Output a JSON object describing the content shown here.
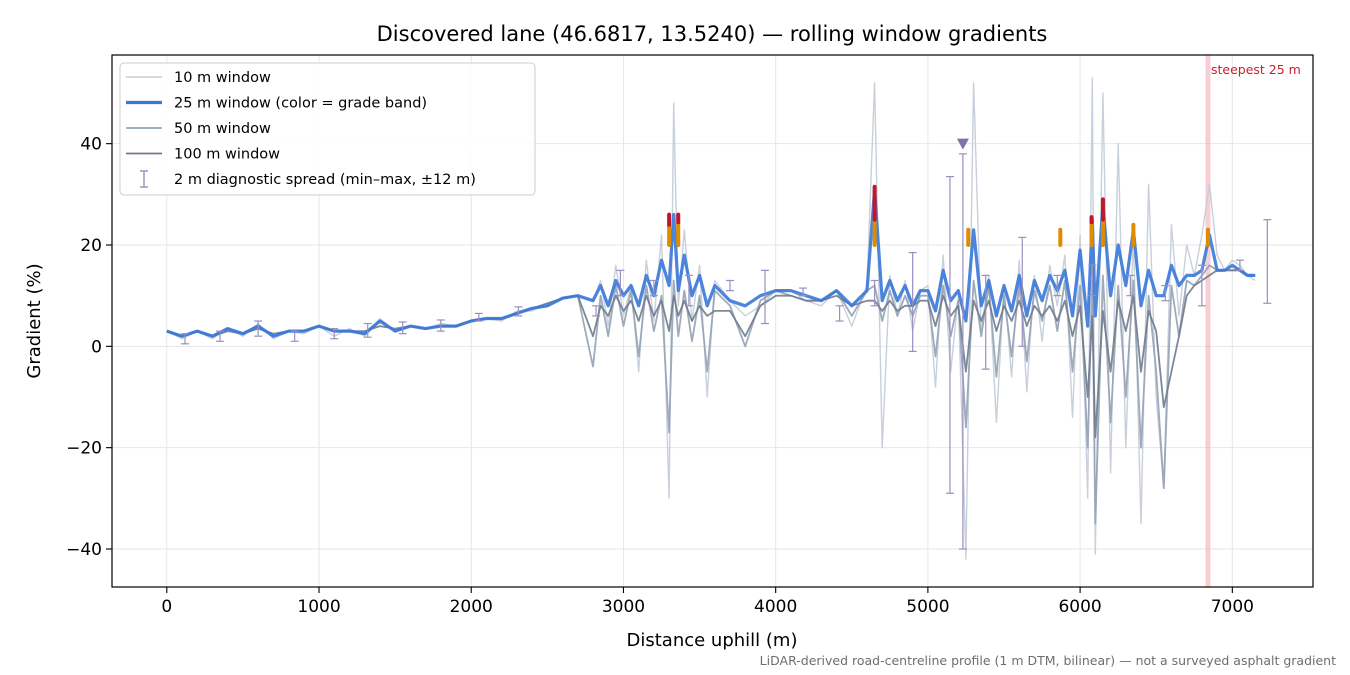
{
  "chart_data": {
    "type": "line",
    "title": "Discovered lane (46.6817, 13.5240) — rolling window gradients",
    "xlabel": "Distance uphill (m)",
    "ylabel": "Gradient (%)",
    "xlim": [
      -360,
      7530
    ],
    "ylim": [
      -47.5,
      57.5
    ],
    "xticks": [
      0,
      1000,
      2000,
      3000,
      4000,
      5000,
      6000,
      7000
    ],
    "yticks": [
      -40,
      -20,
      0,
      20,
      40
    ],
    "xtick_labels": [
      "0",
      "1000",
      "2000",
      "3000",
      "4000",
      "5000",
      "6000",
      "7000"
    ],
    "ytick_labels": [
      "−40",
      "−20",
      "0",
      "20",
      "40"
    ],
    "grid": true,
    "legend_position": "upper-left",
    "footnote": "LiDAR-derived road-centreline profile (1 m DTM, bilinear) — not a surveyed asphalt gradient",
    "annotations": [
      {
        "text": "steepest 25 m",
        "x": 6840,
        "type": "vertical-band",
        "color": "#f4a6ad"
      },
      {
        "type": "marker",
        "shape": "triangle-down",
        "x": 5230,
        "y": 40,
        "color": "#7f73ad"
      }
    ],
    "grade_band_colors": {
      "normal": "#3a78d8",
      "steep": "#e08c00",
      "very_steep": "#c0172b"
    },
    "series": [
      {
        "name": "10 m window",
        "color": "#c5ced9",
        "style": "thin",
        "x": [
          0,
          100,
          200,
          300,
          400,
          500,
          600,
          700,
          800,
          900,
          1000,
          1100,
          1200,
          1300,
          1400,
          1500,
          1600,
          1700,
          1800,
          1900,
          2000,
          2100,
          2200,
          2300,
          2400,
          2500,
          2600,
          2700,
          2800,
          2850,
          2900,
          2950,
          3000,
          3050,
          3100,
          3150,
          3200,
          3250,
          3300,
          3330,
          3360,
          3400,
          3450,
          3500,
          3550,
          3600,
          3700,
          3800,
          3900,
          4000,
          4100,
          4200,
          4300,
          4400,
          4500,
          4600,
          4650,
          4700,
          4750,
          4800,
          4850,
          4900,
          4950,
          5000,
          5050,
          5100,
          5150,
          5200,
          5250,
          5300,
          5350,
          5400,
          5450,
          5500,
          5550,
          5600,
          5650,
          5700,
          5750,
          5800,
          5850,
          5900,
          5950,
          6000,
          6050,
          6080,
          6100,
          6150,
          6200,
          6250,
          6300,
          6350,
          6400,
          6450,
          6500,
          6550,
          6600,
          6650,
          6700,
          6750,
          6800,
          6850,
          6900,
          6950,
          7000,
          7050,
          7100,
          7150
        ],
        "y": [
          3,
          1.5,
          3,
          1.5,
          3.5,
          2,
          4.5,
          1.5,
          3,
          2.5,
          4,
          2,
          3.5,
          2,
          5.5,
          3,
          4,
          3.5,
          4.5,
          4,
          5,
          5.5,
          5,
          7,
          7,
          8.5,
          9.5,
          10,
          9,
          13,
          4,
          16,
          6,
          12,
          -5,
          17,
          5,
          22,
          -30,
          48,
          8,
          23,
          5,
          16,
          -10,
          13,
          9,
          6,
          8,
          11,
          11,
          9,
          8,
          11,
          4,
          12,
          52,
          -20,
          14,
          6,
          13,
          3,
          11,
          12,
          -8,
          18,
          -5,
          10,
          -42,
          52,
          3,
          14,
          -15,
          12,
          -6,
          17,
          -9,
          14,
          1,
          16,
          8,
          18,
          -14,
          22,
          -30,
          53,
          -41,
          50,
          -25,
          40,
          -20,
          22,
          -35,
          32,
          -10,
          -28,
          24,
          6,
          20,
          14,
          22,
          32,
          18,
          15,
          17,
          16,
          14,
          13
        ],
        "label_ref": "legend.items.0.label"
      },
      {
        "name": "25 m window (color = grade band)",
        "color": "#3a78d8",
        "style": "thick",
        "x": [
          0,
          100,
          200,
          300,
          400,
          500,
          600,
          700,
          800,
          900,
          1000,
          1100,
          1200,
          1300,
          1400,
          1500,
          1600,
          1700,
          1800,
          1900,
          2000,
          2100,
          2200,
          2300,
          2400,
          2500,
          2600,
          2700,
          2800,
          2850,
          2900,
          2950,
          3000,
          3050,
          3100,
          3150,
          3200,
          3250,
          3300,
          3330,
          3360,
          3400,
          3450,
          3500,
          3550,
          3600,
          3700,
          3800,
          3900,
          4000,
          4100,
          4200,
          4300,
          4400,
          4500,
          4600,
          4650,
          4700,
          4750,
          4800,
          4850,
          4900,
          4950,
          5000,
          5050,
          5100,
          5150,
          5200,
          5250,
          5300,
          5350,
          5400,
          5450,
          5500,
          5550,
          5600,
          5650,
          5700,
          5750,
          5800,
          5850,
          5900,
          5950,
          6000,
          6050,
          6080,
          6100,
          6150,
          6200,
          6250,
          6300,
          6350,
          6400,
          6450,
          6500,
          6550,
          6600,
          6650,
          6700,
          6750,
          6800,
          6850,
          6900,
          6950,
          7000,
          7050,
          7100,
          7150
        ],
        "y": [
          3,
          2,
          3,
          2,
          3.5,
          2.5,
          4,
          2,
          3,
          3,
          4,
          3,
          3,
          2.5,
          5,
          3,
          4,
          3.5,
          4,
          4,
          5,
          5.5,
          5.5,
          6.5,
          7.5,
          8,
          9.5,
          10,
          9,
          12,
          8,
          13,
          10,
          12,
          8,
          14,
          10,
          17,
          12,
          26,
          11,
          18,
          10,
          14,
          8,
          12,
          9,
          8,
          10,
          11,
          11,
          10,
          9,
          11,
          8,
          11,
          31,
          9,
          13,
          9,
          12,
          8,
          11,
          11,
          7,
          15,
          9,
          11,
          5,
          23,
          8,
          13,
          6,
          12,
          7,
          14,
          6,
          13,
          9,
          14,
          11,
          15,
          6,
          19,
          4,
          25,
          6,
          28,
          10,
          20,
          12,
          23,
          8,
          15,
          10,
          10,
          16,
          12,
          14,
          14,
          15,
          22,
          15,
          15,
          16,
          15,
          14,
          14
        ],
        "label_ref": "legend.items.1.label"
      },
      {
        "name": "50 m window",
        "color": "#93a2b5",
        "style": "medium",
        "x": [
          0,
          100,
          200,
          300,
          400,
          500,
          600,
          700,
          800,
          900,
          1000,
          1100,
          1200,
          1300,
          1400,
          1500,
          1600,
          1700,
          1800,
          1900,
          2000,
          2100,
          2200,
          2300,
          2400,
          2500,
          2600,
          2700,
          2800,
          2850,
          2900,
          2950,
          3000,
          3050,
          3100,
          3150,
          3200,
          3250,
          3300,
          3330,
          3360,
          3400,
          3450,
          3500,
          3550,
          3600,
          3700,
          3800,
          3900,
          4000,
          4100,
          4200,
          4300,
          4400,
          4500,
          4600,
          4650,
          4700,
          4750,
          4800,
          4850,
          4900,
          4950,
          5000,
          5050,
          5100,
          5150,
          5200,
          5250,
          5300,
          5350,
          5400,
          5450,
          5500,
          5550,
          5600,
          5650,
          5700,
          5750,
          5800,
          5850,
          5900,
          5950,
          6000,
          6050,
          6080,
          6100,
          6150,
          6200,
          6250,
          6300,
          6350,
          6400,
          6450,
          6500,
          6550,
          6600,
          6650,
          6700,
          6750,
          6800,
          6850,
          6900,
          6950,
          7000,
          7050,
          7100,
          7150
        ],
        "y": [
          3,
          2,
          3,
          2,
          3.5,
          2.5,
          4,
          2,
          3,
          3,
          4,
          3,
          3,
          2.5,
          5,
          3,
          4,
          3.5,
          4,
          4,
          5,
          5.5,
          5.5,
          6.5,
          7.5,
          8,
          9.5,
          10,
          -4,
          10,
          2,
          12,
          4,
          11,
          -2,
          12,
          3,
          10,
          -17,
          13,
          2,
          11,
          1,
          10,
          -5,
          11,
          8,
          0,
          9,
          11,
          10,
          9,
          9,
          11,
          6,
          11,
          12,
          5,
          11,
          6,
          10,
          6,
          10,
          10,
          -2,
          12,
          2,
          9,
          -16,
          13,
          2,
          12,
          -6,
          10,
          -2,
          12,
          -3,
          11,
          5,
          12,
          3,
          13,
          -5,
          12,
          -20,
          13,
          -35,
          14,
          -15,
          12,
          -10,
          13,
          -20,
          10,
          -5,
          -28,
          12,
          2,
          13,
          12,
          14,
          16,
          15,
          15,
          15,
          15,
          14,
          14
        ],
        "label_ref": "legend.items.2.label"
      },
      {
        "name": "100 m window",
        "color": "#6f7b8d",
        "style": "medium",
        "x": [
          0,
          100,
          200,
          300,
          400,
          500,
          600,
          700,
          800,
          900,
          1000,
          1100,
          1200,
          1300,
          1400,
          1500,
          1600,
          1700,
          1800,
          1900,
          2000,
          2100,
          2200,
          2300,
          2400,
          2500,
          2600,
          2700,
          2800,
          2850,
          2900,
          2950,
          3000,
          3050,
          3100,
          3150,
          3200,
          3250,
          3300,
          3330,
          3360,
          3400,
          3450,
          3500,
          3550,
          3600,
          3700,
          3800,
          3900,
          4000,
          4100,
          4200,
          4300,
          4400,
          4500,
          4600,
          4650,
          4700,
          4750,
          4800,
          4850,
          4900,
          4950,
          5000,
          5050,
          5100,
          5150,
          5200,
          5250,
          5300,
          5350,
          5400,
          5450,
          5500,
          5550,
          5600,
          5650,
          5700,
          5750,
          5800,
          5850,
          5900,
          5950,
          6000,
          6050,
          6080,
          6100,
          6150,
          6200,
          6250,
          6300,
          6350,
          6400,
          6450,
          6500,
          6550,
          6600,
          6650,
          6700,
          6750,
          6800,
          6850,
          6900,
          6950,
          7000,
          7050,
          7100,
          7150
        ],
        "y": [
          3,
          2,
          3,
          2,
          3,
          2.5,
          3.5,
          2.5,
          3,
          3,
          4,
          3,
          3,
          3,
          4,
          3.5,
          4,
          3.5,
          4,
          4,
          5,
          5.5,
          5.5,
          6.5,
          7.5,
          8.5,
          9.5,
          10,
          2,
          8,
          6,
          10,
          7,
          9,
          5,
          10,
          6,
          9,
          3,
          10,
          6,
          9,
          5,
          8,
          6,
          7,
          7,
          2,
          8,
          10,
          10,
          9,
          9,
          10,
          8,
          9,
          9,
          7,
          9,
          7,
          8,
          8,
          9,
          9,
          4,
          10,
          6,
          8,
          -5,
          9,
          5,
          9,
          3,
          8,
          5,
          9,
          4,
          8,
          6,
          8,
          5,
          9,
          2,
          8,
          -10,
          6,
          -18,
          7,
          -5,
          9,
          3,
          10,
          -5,
          7,
          3,
          -12,
          -5,
          2,
          10,
          12,
          13,
          14,
          15,
          15,
          15,
          15,
          14,
          14
        ],
        "label_ref": "legend.items.3.label"
      },
      {
        "name": "2 m diagnostic spread (min–max, ±12 m)",
        "color": "#9a8fbf",
        "style": "errorbar",
        "points": [
          {
            "x": 120,
            "ymin": 0.5,
            "ymax": 2.5
          },
          {
            "x": 350,
            "ymin": 1.0,
            "ymax": 3.0
          },
          {
            "x": 600,
            "ymin": 2.0,
            "ymax": 5.0
          },
          {
            "x": 840,
            "ymin": 1.0,
            "ymax": 3.0
          },
          {
            "x": 1100,
            "ymin": 1.5,
            "ymax": 3.5
          },
          {
            "x": 1320,
            "ymin": 1.8,
            "ymax": 4.5
          },
          {
            "x": 1550,
            "ymin": 2.5,
            "ymax": 4.8
          },
          {
            "x": 1800,
            "ymin": 3.0,
            "ymax": 5.2
          },
          {
            "x": 2050,
            "ymin": 5.0,
            "ymax": 6.5
          },
          {
            "x": 2310,
            "ymin": 6.0,
            "ymax": 7.8
          },
          {
            "x": 2820,
            "ymin": 6.0,
            "ymax": 8.0
          },
          {
            "x": 2980,
            "ymin": 10.0,
            "ymax": 15.0
          },
          {
            "x": 3200,
            "ymin": 10.0,
            "ymax": 13.0
          },
          {
            "x": 3430,
            "ymin": 8.0,
            "ymax": 14.0
          },
          {
            "x": 3700,
            "ymin": 11.0,
            "ymax": 13.0
          },
          {
            "x": 3930,
            "ymin": 4.5,
            "ymax": 15.0
          },
          {
            "x": 4180,
            "ymin": 10.0,
            "ymax": 11.5
          },
          {
            "x": 4420,
            "ymin": 5.0,
            "ymax": 8.0
          },
          {
            "x": 4650,
            "ymin": 8.0,
            "ymax": 13.0
          },
          {
            "x": 4900,
            "ymin": -1.0,
            "ymax": 18.5
          },
          {
            "x": 5145,
            "ymin": -29.0,
            "ymax": 33.5
          },
          {
            "x": 5230,
            "ymin": -40.0,
            "ymax": 38.0
          },
          {
            "x": 5380,
            "ymin": -4.5,
            "ymax": 14.0
          },
          {
            "x": 5620,
            "ymin": 0.0,
            "ymax": 21.5
          },
          {
            "x": 5850,
            "ymin": 10.0,
            "ymax": 14.0
          },
          {
            "x": 6080,
            "ymin": 10.0,
            "ymax": 16.0
          },
          {
            "x": 6330,
            "ymin": 10.0,
            "ymax": 14.0
          },
          {
            "x": 6560,
            "ymin": 9.0,
            "ymax": 12.0
          },
          {
            "x": 6800,
            "ymin": 8.0,
            "ymax": 16.0
          },
          {
            "x": 7050,
            "ymin": 15.0,
            "ymax": 17.0
          },
          {
            "x": 7230,
            "ymin": 8.5,
            "ymax": 25.0
          }
        ],
        "label_ref": "legend.items.4.label"
      }
    ],
    "grade_band_spikes": [
      {
        "x": 3300,
        "y_top": 26,
        "y_orange_from": 20,
        "y_red_from": 24
      },
      {
        "x": 3360,
        "y_top": 26,
        "y_orange_from": 20,
        "y_red_from": 24.5
      },
      {
        "x": 4650,
        "y_top": 31.5,
        "y_orange_from": 20,
        "y_red_from": 25
      },
      {
        "x": 5265,
        "y_top": 23,
        "y_orange_from": 20,
        "y_red_from": null
      },
      {
        "x": 5870,
        "y_top": 23,
        "y_orange_from": 20,
        "y_red_from": null
      },
      {
        "x": 6075,
        "y_top": 25.5,
        "y_orange_from": 20,
        "y_red_from": 24.5
      },
      {
        "x": 6150,
        "y_top": 29,
        "y_orange_from": 20,
        "y_red_from": 25
      },
      {
        "x": 6350,
        "y_top": 24,
        "y_orange_from": 20,
        "y_red_from": null
      },
      {
        "x": 6840,
        "y_top": 23,
        "y_orange_from": 20,
        "y_red_from": null
      }
    ]
  },
  "legend": {
    "items": [
      {
        "label": "10 m window",
        "kind": "line",
        "color": "#c5ced9",
        "width": 1.6
      },
      {
        "label": "25 m window (color = grade band)",
        "kind": "line",
        "color": "#3a78d8",
        "width": 3.2
      },
      {
        "label": "50 m window",
        "kind": "line",
        "color": "#93a2b5",
        "width": 1.8
      },
      {
        "label": "100 m window",
        "kind": "line",
        "color": "#6f7b8d",
        "width": 1.8
      },
      {
        "label": "2 m diagnostic spread (min–max, ±12 m)",
        "kind": "errorbar",
        "color": "#9a8fbf",
        "width": 1.2
      }
    ]
  }
}
